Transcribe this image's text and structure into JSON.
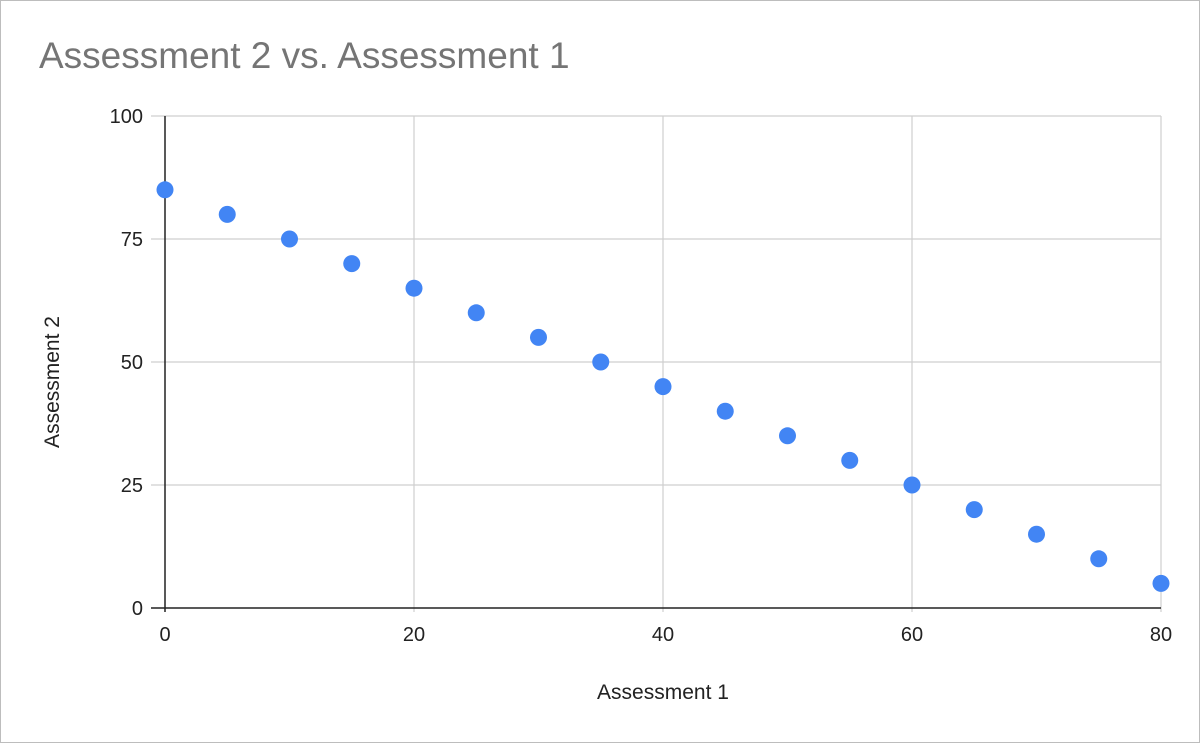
{
  "chart_data": {
    "type": "scatter",
    "title": "Assessment 2 vs. Assessment 1",
    "xlabel": "Assessment 1",
    "ylabel": "Assessment 2",
    "xlim": [
      0,
      80
    ],
    "ylim": [
      0,
      100
    ],
    "x_ticks": [
      0,
      20,
      40,
      60,
      80
    ],
    "y_ticks": [
      0,
      25,
      50,
      75,
      100
    ],
    "grid": true,
    "legend": "none",
    "point_color": "#4285f4",
    "series": [
      {
        "x": [
          0,
          5,
          10,
          15,
          20,
          25,
          30,
          35,
          40,
          45,
          50,
          55,
          60,
          65,
          70,
          75,
          80
        ],
        "y": [
          85,
          80,
          75,
          70,
          65,
          60,
          55,
          50,
          45,
          40,
          35,
          30,
          25,
          20,
          15,
          10,
          5
        ]
      }
    ]
  }
}
